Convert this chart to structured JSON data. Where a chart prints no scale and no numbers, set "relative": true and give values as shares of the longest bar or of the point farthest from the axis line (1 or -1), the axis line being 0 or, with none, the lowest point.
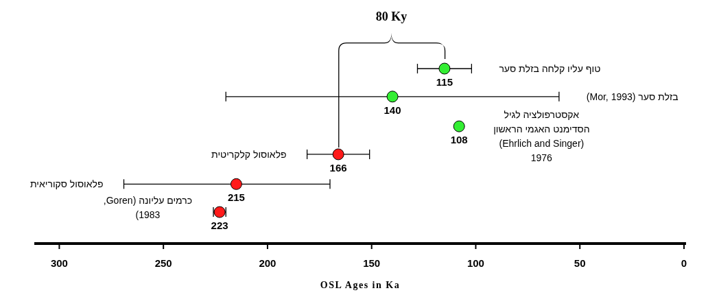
{
  "chart_data": {
    "type": "scatter",
    "relative": true,
    "x": [
      115,
      140,
      108,
      166,
      215,
      223
    ],
    "values": [
      1,
      0.84,
      0.67,
      0.51,
      0.34,
      0.18
    ],
    "xerrors": [
      13,
      80,
      null,
      15,
      [
        170,
        269
      ],
      3
    ],
    "colors": [
      "#33ee33",
      "#33ee33",
      "#33ee33",
      "#ff1a1a",
      "#ff1a1a",
      "#ff1a1a"
    ],
    "xlim": [
      312,
      -1
    ],
    "xticks": [
      300,
      250,
      200,
      150,
      100,
      50,
      0
    ],
    "xlabel": "OSL Ages in Ka",
    "annotations": [
      "80 Ky",
      "טוף עליו קלחה בזלת סער",
      "בזלת סער (Mor, 1993)",
      "אקסטרפולציה לגיל הסדימנט האגמי הראשון (Ehrlich and Singer) 1976",
      "פלאוסול קלקריטית",
      "פלאוסול סקוריאית",
      "כרמים עליונה (Goren, 1983)",
      {
        "text": "115",
        "x": 115,
        "y": 1
      },
      {
        "text": "140",
        "x": 140,
        "y": 0.84
      },
      {
        "text": "108",
        "x": 108,
        "y": 0.67
      },
      {
        "text": "166",
        "x": 166,
        "y": 0.51
      },
      {
        "text": "215",
        "x": 215,
        "y": 0.34
      },
      {
        "text": "223",
        "x": 223,
        "y": 0.18
      }
    ]
  }
}
